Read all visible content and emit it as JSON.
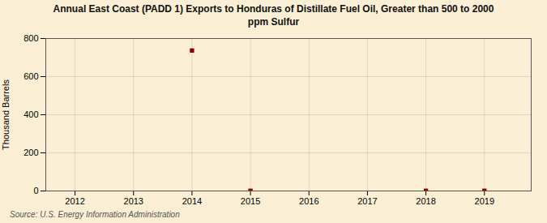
{
  "chart_data": {
    "type": "scatter",
    "title": "Annual East Coast (PADD 1) Exports to Honduras of Distillate Fuel Oil, Greater than 500 to 2000\nppm Sulfur",
    "ylabel": "Thousand Barrels",
    "source": "Source: U.S. Energy Information Administration",
    "x": [
      2014,
      2015,
      2018,
      2019
    ],
    "values": [
      737,
      1,
      1,
      1
    ],
    "color": "#8b0000",
    "marker": "square",
    "xlim": [
      2011.5,
      2019.8
    ],
    "ylim": [
      0,
      800
    ],
    "xticks": [
      2012,
      2013,
      2014,
      2015,
      2016,
      2017,
      2018,
      2019
    ],
    "yticks": [
      0,
      200,
      400,
      600,
      800
    ],
    "grid": true
  }
}
